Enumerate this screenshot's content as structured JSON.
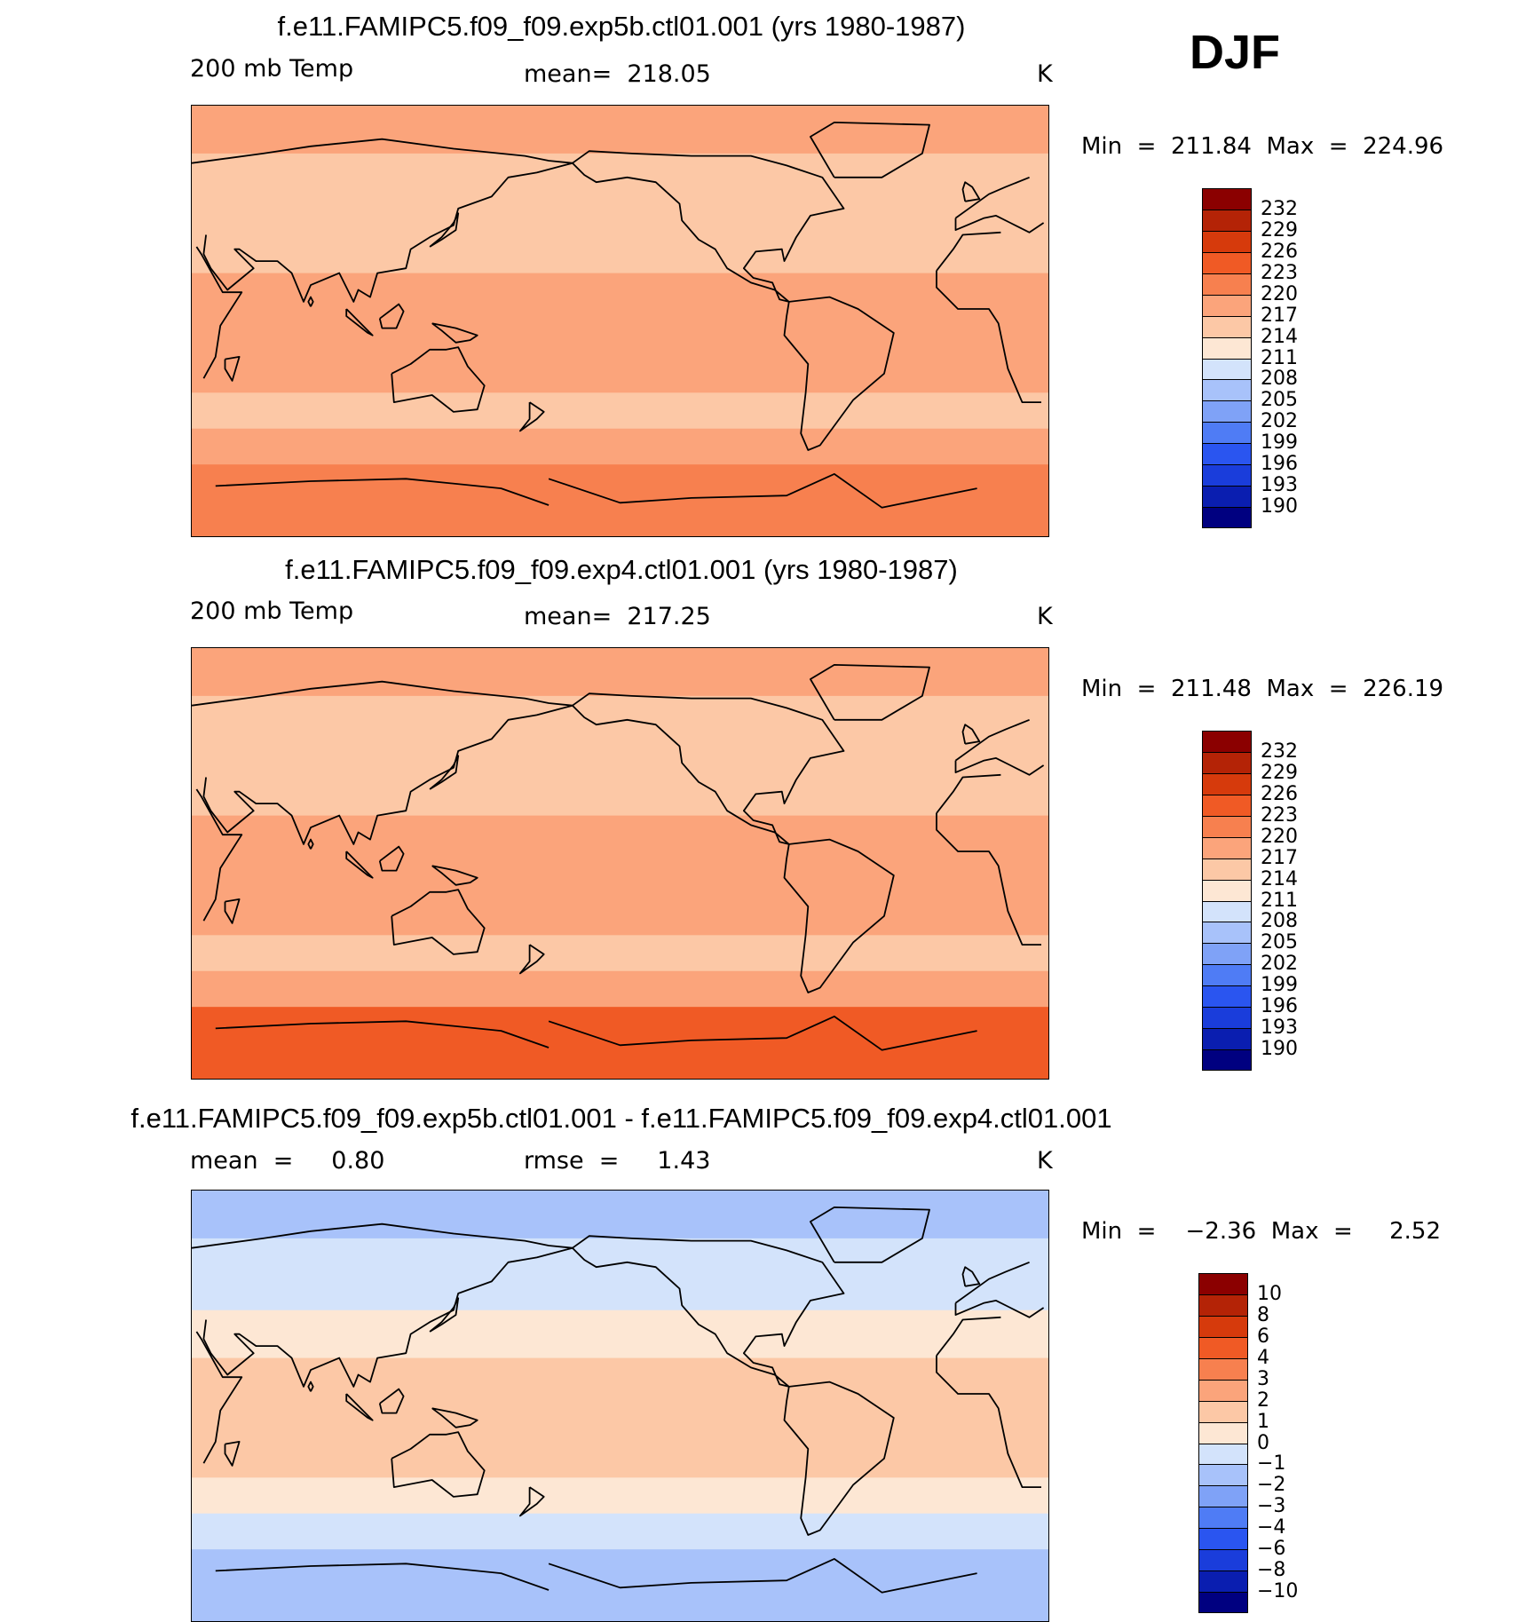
{
  "season": "DJF",
  "panels": [
    {
      "title": "f.e11.FAMIPC5.f09_f09.exp5b.ctl01.001 (yrs 1980-1987)",
      "left_label": "200 mb Temp",
      "center_label": "mean=  218.05",
      "units": "K",
      "minmax": "Min  =  211.84  Max  =  224.96"
    },
    {
      "title": "f.e11.FAMIPC5.f09_f09.exp4.ctl01.001 (yrs 1980-1987)",
      "left_label": "200 mb Temp",
      "center_label": "mean=  217.25",
      "units": "K",
      "minmax": "Min  =  211.48  Max  =  226.19"
    },
    {
      "title": "f.e11.FAMIPC5.f09_f09.exp5b.ctl01.001 - f.e11.FAMIPC5.f09_f09.exp4.ctl01.001",
      "left_label": "mean  =     0.80",
      "center_label": "rmse  =     1.43",
      "units": "K",
      "minmax": "Min  =    −2.36  Max  =     2.52"
    }
  ],
  "chart_data": [
    {
      "type": "heatmap",
      "variable": "200 mb Temp",
      "units": "K",
      "mean": 218.05,
      "min": 211.84,
      "max": 224.96,
      "colorbar_levels": [
        190,
        193,
        196,
        199,
        202,
        205,
        208,
        211,
        214,
        217,
        220,
        223,
        226,
        229,
        232
      ],
      "colorbar_colors": [
        "#000080",
        "#0a1eb0",
        "#1a3ddb",
        "#2a55f0",
        "#4f7cf5",
        "#7fa2f7",
        "#a8c2fa",
        "#d3e3fb",
        "#fde7d4",
        "#fcc8a6",
        "#fba47b",
        "#f7804f",
        "#f05a25",
        "#d63a0c",
        "#b42306",
        "#8b0000"
      ],
      "field_zones_top_to_bottom_K": [
        {
          "lat_band": "90N-70N",
          "value": 218
        },
        {
          "lat_band": "70N-40N",
          "value": 216
        },
        {
          "lat_band": "40N-20N",
          "value": 215
        },
        {
          "lat_band": "20N-30S",
          "value": 219
        },
        {
          "lat_band": "30S-45S",
          "value": 215
        },
        {
          "lat_band": "45S-60S",
          "value": 218
        },
        {
          "lat_band": "60S-90S",
          "value": 222
        }
      ]
    },
    {
      "type": "heatmap",
      "variable": "200 mb Temp",
      "units": "K",
      "mean": 217.25,
      "min": 211.48,
      "max": 226.19,
      "colorbar_levels": [
        190,
        193,
        196,
        199,
        202,
        205,
        208,
        211,
        214,
        217,
        220,
        223,
        226,
        229,
        232
      ],
      "colorbar_colors": [
        "#000080",
        "#0a1eb0",
        "#1a3ddb",
        "#2a55f0",
        "#4f7cf5",
        "#7fa2f7",
        "#a8c2fa",
        "#d3e3fb",
        "#fde7d4",
        "#fcc8a6",
        "#fba47b",
        "#f7804f",
        "#f05a25",
        "#d63a0c",
        "#b42306",
        "#8b0000"
      ],
      "field_zones_top_to_bottom_K": [
        {
          "lat_band": "90N-70N",
          "value": 218
        },
        {
          "lat_band": "70N-40N",
          "value": 216
        },
        {
          "lat_band": "40N-20N",
          "value": 216
        },
        {
          "lat_band": "20N-30S",
          "value": 218
        },
        {
          "lat_band": "30S-45S",
          "value": 215
        },
        {
          "lat_band": "45S-60S",
          "value": 217
        },
        {
          "lat_band": "60S-90S",
          "value": 223
        }
      ]
    },
    {
      "type": "heatmap",
      "variable": "200 mb Temp difference",
      "units": "K",
      "mean": 0.8,
      "rmse": 1.43,
      "min": -2.36,
      "max": 2.52,
      "colorbar_levels": [
        -10,
        -8,
        -6,
        -4,
        -3,
        -2,
        -1,
        0,
        1,
        2,
        3,
        4,
        6,
        8,
        10
      ],
      "colorbar_colors": [
        "#000080",
        "#0a1eb0",
        "#1a3ddb",
        "#2a55f0",
        "#4f7cf5",
        "#7fa2f7",
        "#a8c2fa",
        "#d3e3fb",
        "#fde7d4",
        "#fcc8a6",
        "#fba47b",
        "#f7804f",
        "#f05a25",
        "#d63a0c",
        "#b42306",
        "#8b0000"
      ],
      "field_zones_top_to_bottom_K": [
        {
          "lat_band": "90N-70N",
          "value": -1.5
        },
        {
          "lat_band": "70N-40N",
          "value": -0.5
        },
        {
          "lat_band": "40N-20N",
          "value": 0.5
        },
        {
          "lat_band": "20N-30S",
          "value": 1.5
        },
        {
          "lat_band": "30S-45S",
          "value": 0.5
        },
        {
          "lat_band": "45S-60S",
          "value": -0.5
        },
        {
          "lat_band": "60S-90S",
          "value": -1.5
        }
      ]
    }
  ]
}
